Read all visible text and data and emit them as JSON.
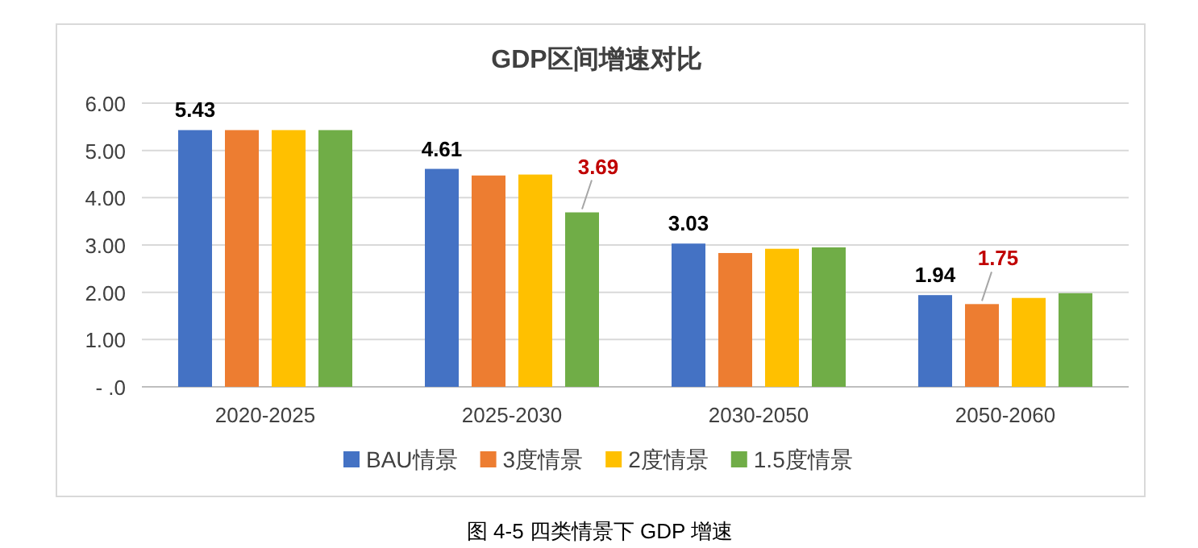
{
  "chart_data": {
    "type": "bar",
    "title": "GDP区间增速对比",
    "categories": [
      "2020-2025",
      "2025-2030",
      "2030-2050",
      "2050-2060"
    ],
    "series": [
      {
        "name": "BAU情景",
        "color": "#4472c4",
        "values": [
          5.43,
          4.61,
          3.03,
          1.94
        ],
        "value_labels": [
          "5.43",
          "4.61",
          "3.03",
          "1.94"
        ]
      },
      {
        "name": "3度情景",
        "color": "#ed7d31",
        "values": [
          5.43,
          4.47,
          2.83,
          1.75
        ],
        "value_labels": [
          null,
          null,
          null,
          "1.75"
        ]
      },
      {
        "name": "2度情景",
        "color": "#ffc000",
        "values": [
          5.43,
          4.49,
          2.92,
          1.88
        ]
      },
      {
        "name": "1.5度情景",
        "color": "#70ad47",
        "values": [
          5.43,
          3.69,
          2.95,
          1.98
        ],
        "value_labels": [
          null,
          "3.69",
          null,
          null
        ]
      }
    ],
    "ylim": [
      0,
      6
    ],
    "yticks": [
      {
        "value": 0,
        "label": "- .0"
      },
      {
        "value": 1,
        "label": "1.00"
      },
      {
        "value": 2,
        "label": "2.00"
      },
      {
        "value": 3,
        "label": "3.00"
      },
      {
        "value": 4,
        "label": "4.00"
      },
      {
        "value": 5,
        "label": "5.00"
      },
      {
        "value": 6,
        "label": "6.00"
      }
    ],
    "grid": "y",
    "legend": "bottom",
    "annotations": [
      "图 4-5 四类情景下 GDP 增速"
    ]
  }
}
